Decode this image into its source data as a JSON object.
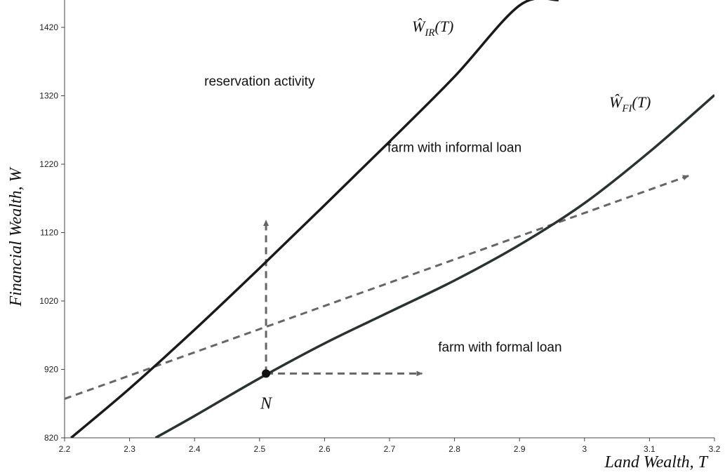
{
  "chart_data": {
    "type": "line",
    "title": "",
    "xlabel": "Land Wealth, T",
    "ylabel": "Financial Wealth, W",
    "xlim": [
      2.2,
      3.2
    ],
    "ylim": [
      820,
      1460
    ],
    "x_ticks": [
      2.2,
      2.3,
      2.4,
      2.5,
      2.6,
      2.7,
      2.8,
      2.9,
      3,
      3.1,
      3.2
    ],
    "x_tick_labels": [
      "2.2",
      "2.3",
      "2.4",
      "2.5",
      "2.6",
      "2.7",
      "2.8",
      "2.9",
      "3",
      "3.1",
      "3.2"
    ],
    "y_ticks": [
      820,
      920,
      1020,
      1120,
      1220,
      1320,
      1420
    ],
    "y_tick_labels": [
      "820",
      "920",
      "1020",
      "1120",
      "1220",
      "1320",
      "1420"
    ],
    "grid": false,
    "series": [
      {
        "name": "Ŵ_IR(T)",
        "label_main": "Ŵ",
        "label_sub": "IR",
        "label_tail": "(T)",
        "color": "#1a1a1a",
        "x": [
          2.21,
          2.3,
          2.4,
          2.5,
          2.6,
          2.7,
          2.8,
          2.9,
          2.96
        ],
        "y": [
          820,
          892,
          978,
          1068,
          1160,
          1253,
          1348,
          1452,
          1460
        ]
      },
      {
        "name": "Ŵ_FI(T)",
        "label_main": "Ŵ",
        "label_sub": "FI",
        "label_tail": "(T)",
        "color": "#2a3330",
        "x": [
          2.34,
          2.4,
          2.5,
          2.6,
          2.7,
          2.8,
          2.9,
          3,
          3.1,
          3.2
        ],
        "y": [
          820,
          852,
          907,
          958,
          1004,
          1050,
          1102,
          1163,
          1238,
          1321
        ]
      }
    ],
    "point": {
      "label": "N",
      "x": 2.51,
      "y": 914
    },
    "arrows": [
      {
        "name": "budget-line-arrow",
        "from": [
          2.2,
          877
        ],
        "to": [
          3.16,
          1203
        ],
        "style": "dashed",
        "color": "#666666"
      },
      {
        "name": "vertical-arrow",
        "from": [
          2.51,
          914
        ],
        "to": [
          2.51,
          1138
        ],
        "style": "dashed",
        "color": "#666666"
      },
      {
        "name": "horizontal-arrow",
        "from": [
          2.51,
          914
        ],
        "to": [
          2.75,
          914
        ],
        "style": "dashed",
        "color": "#666666"
      }
    ],
    "annotations": [
      {
        "name": "region-reservation",
        "text": "reservation activity",
        "x": 2.5,
        "y": 1335
      },
      {
        "name": "region-informal",
        "text": "farm with informal loan",
        "x": 2.8,
        "y": 1238
      },
      {
        "name": "region-formal",
        "text": "farm with formal loan",
        "x": 2.87,
        "y": 946
      }
    ]
  }
}
